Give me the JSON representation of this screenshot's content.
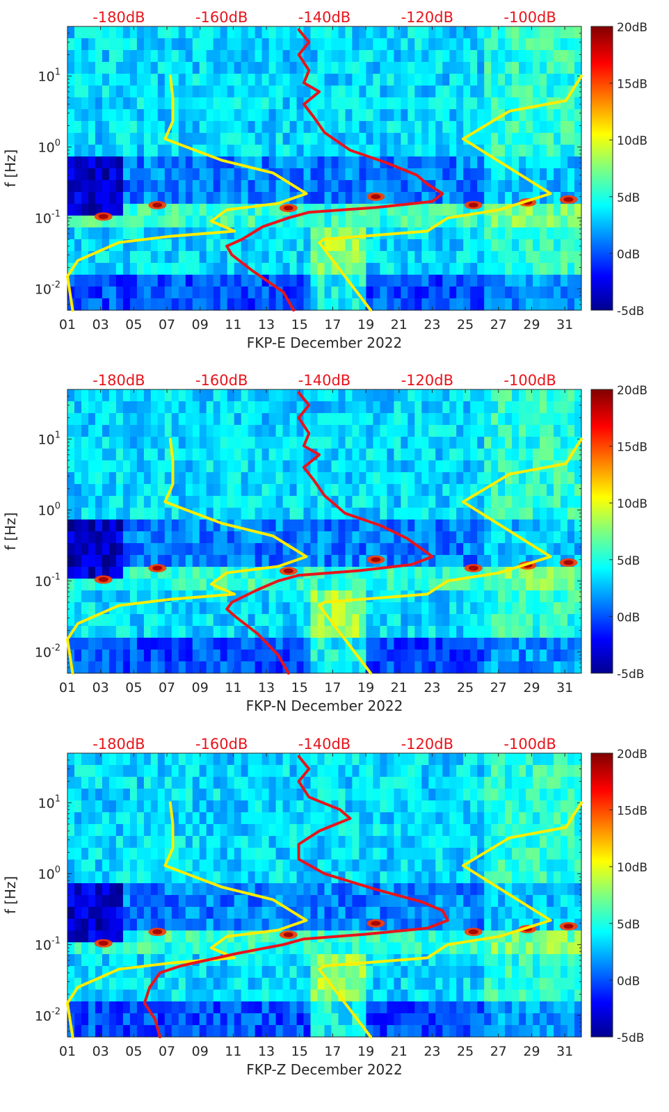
{
  "chart_data": [
    {
      "type": "heatmap",
      "title": "",
      "xlabel": "FKP-E December 2022",
      "ylabel": "f [Hz]",
      "x_ticks": [
        "01",
        "03",
        "05",
        "07",
        "09",
        "11",
        "13",
        "15",
        "17",
        "19",
        "21",
        "23",
        "25",
        "27",
        "29",
        "31"
      ],
      "x_range_days": [
        1,
        32
      ],
      "y_scale": "log",
      "y_range_hz": [
        0.005,
        50
      ],
      "y_ticks": [
        {
          "label_base": "10",
          "label_exp": "-2",
          "value": 0.01
        },
        {
          "label_base": "10",
          "label_exp": "-1",
          "value": 0.1
        },
        {
          "label_base": "10",
          "label_exp": "0",
          "value": 1
        },
        {
          "label_base": "10",
          "label_exp": "1",
          "value": 10
        }
      ],
      "top_axis_labels": [
        "-180dB",
        "-160dB",
        "-140dB",
        "-120dB",
        "-100dB"
      ],
      "top_axis_db_range": [
        -190,
        -90
      ],
      "colorbar": {
        "labels": [
          "20dB",
          "15dB",
          "10dB",
          "5dB",
          "0dB",
          "-5dB"
        ],
        "range_db": [
          -5,
          20
        ],
        "colormap": "jet"
      },
      "series": [
        {
          "color": "#ffee00",
          "points": [
            [
              -170,
              10
            ],
            [
              -169.5,
              5
            ],
            [
              -169.5,
              2.3
            ],
            [
              -171,
              1.3
            ],
            [
              -160,
              0.65
            ],
            [
              -150,
              0.43
            ],
            [
              -143.5,
              0.22
            ],
            [
              -149,
              0.16
            ],
            [
              -159,
              0.13
            ],
            [
              -162,
              0.09
            ],
            [
              -157.5,
              0.065
            ],
            [
              -170,
              0.055
            ],
            [
              -180,
              0.045
            ],
            [
              -188,
              0.025
            ],
            [
              -190,
              0.015
            ],
            [
              -189,
              0.005
            ]
          ]
        },
        {
          "color": "#ffee00",
          "points": [
            [
              -90,
              10
            ],
            [
              -93,
              4.5
            ],
            [
              -104,
              3.2
            ],
            [
              -113,
              1.3
            ],
            [
              -96,
              0.22
            ],
            [
              -106,
              0.13
            ],
            [
              -116,
              0.1
            ],
            [
              -120,
              0.065
            ],
            [
              -140,
              0.05
            ],
            [
              -141,
              0.045
            ],
            [
              -131,
              0.005
            ]
          ]
        },
        {
          "color": "#e8141b",
          "points": [
            [
              -145,
              45
            ],
            [
              -143,
              30
            ],
            [
              -145,
              20
            ],
            [
              -143,
              12
            ],
            [
              -144,
              8
            ],
            [
              -141,
              6
            ],
            [
              -144,
              4
            ],
            [
              -142,
              2.6
            ],
            [
              -140,
              1.6
            ],
            [
              -135,
              0.9
            ],
            [
              -128,
              0.6
            ],
            [
              -122,
              0.4
            ],
            [
              -120,
              0.3
            ],
            [
              -117,
              0.22
            ],
            [
              -119,
              0.17
            ],
            [
              -130,
              0.14
            ],
            [
              -143,
              0.12
            ],
            [
              -147,
              0.1
            ],
            [
              -152,
              0.075
            ],
            [
              -156,
              0.05
            ],
            [
              -159,
              0.04
            ],
            [
              -158,
              0.03
            ],
            [
              -154,
              0.018
            ],
            [
              -148,
              0.009
            ],
            [
              -146,
              0.005
            ]
          ]
        }
      ]
    },
    {
      "type": "heatmap",
      "title": "",
      "xlabel": "FKP-N December 2022",
      "ylabel": "f [Hz]",
      "x_ticks": [
        "01",
        "03",
        "05",
        "07",
        "09",
        "11",
        "13",
        "15",
        "17",
        "19",
        "21",
        "23",
        "25",
        "27",
        "29",
        "31"
      ],
      "x_range_days": [
        1,
        32
      ],
      "y_scale": "log",
      "y_range_hz": [
        0.005,
        50
      ],
      "y_ticks": [
        {
          "label_base": "10",
          "label_exp": "-2",
          "value": 0.01
        },
        {
          "label_base": "10",
          "label_exp": "-1",
          "value": 0.1
        },
        {
          "label_base": "10",
          "label_exp": "0",
          "value": 1
        },
        {
          "label_base": "10",
          "label_exp": "1",
          "value": 10
        }
      ],
      "top_axis_labels": [
        "-180dB",
        "-160dB",
        "-140dB",
        "-120dB",
        "-100dB"
      ],
      "top_axis_db_range": [
        -190,
        -90
      ],
      "colorbar": {
        "labels": [
          "20dB",
          "15dB",
          "10dB",
          "5dB",
          "0dB",
          "-5dB"
        ],
        "range_db": [
          -5,
          20
        ],
        "colormap": "jet"
      },
      "series": [
        {
          "color": "#ffee00",
          "points": [
            [
              -170,
              10
            ],
            [
              -169.5,
              5
            ],
            [
              -169.5,
              2.3
            ],
            [
              -171,
              1.3
            ],
            [
              -160,
              0.65
            ],
            [
              -150,
              0.43
            ],
            [
              -143.5,
              0.22
            ],
            [
              -149,
              0.16
            ],
            [
              -159,
              0.13
            ],
            [
              -162,
              0.09
            ],
            [
              -157.5,
              0.065
            ],
            [
              -170,
              0.055
            ],
            [
              -180,
              0.045
            ],
            [
              -188,
              0.025
            ],
            [
              -190,
              0.015
            ],
            [
              -189,
              0.005
            ]
          ]
        },
        {
          "color": "#ffee00",
          "points": [
            [
              -90,
              10
            ],
            [
              -93,
              4.5
            ],
            [
              -104,
              3.2
            ],
            [
              -113,
              1.3
            ],
            [
              -96,
              0.22
            ],
            [
              -106,
              0.13
            ],
            [
              -116,
              0.1
            ],
            [
              -120,
              0.065
            ],
            [
              -140,
              0.05
            ],
            [
              -141,
              0.045
            ],
            [
              -131,
              0.005
            ]
          ]
        },
        {
          "color": "#e8141b",
          "points": [
            [
              -145,
              45
            ],
            [
              -143,
              30
            ],
            [
              -145,
              20
            ],
            [
              -143,
              12
            ],
            [
              -144,
              8
            ],
            [
              -141,
              6
            ],
            [
              -144,
              4
            ],
            [
              -142,
              2.6
            ],
            [
              -140,
              1.6
            ],
            [
              -136,
              0.9
            ],
            [
              -129,
              0.6
            ],
            [
              -124,
              0.4
            ],
            [
              -121,
              0.28
            ],
            [
              -119,
              0.22
            ],
            [
              -123,
              0.17
            ],
            [
              -133,
              0.14
            ],
            [
              -145,
              0.12
            ],
            [
              -149,
              0.1
            ],
            [
              -153,
              0.075
            ],
            [
              -158,
              0.05
            ],
            [
              -159,
              0.04
            ],
            [
              -157,
              0.03
            ],
            [
              -153,
              0.018
            ],
            [
              -149,
              0.009
            ],
            [
              -147,
              0.005
            ]
          ]
        }
      ]
    },
    {
      "type": "heatmap",
      "title": "",
      "xlabel": "FKP-Z December 2022",
      "ylabel": "f [Hz]",
      "x_ticks": [
        "01",
        "03",
        "05",
        "07",
        "09",
        "11",
        "13",
        "15",
        "17",
        "19",
        "21",
        "23",
        "25",
        "27",
        "29",
        "31"
      ],
      "x_range_days": [
        1,
        32
      ],
      "y_scale": "log",
      "y_range_hz": [
        0.005,
        50
      ],
      "y_ticks": [
        {
          "label_base": "10",
          "label_exp": "-2",
          "value": 0.01
        },
        {
          "label_base": "10",
          "label_exp": "-1",
          "value": 0.1
        },
        {
          "label_base": "10",
          "label_exp": "0",
          "value": 1
        },
        {
          "label_base": "10",
          "label_exp": "1",
          "value": 10
        }
      ],
      "top_axis_labels": [
        "-180dB",
        "-160dB",
        "-140dB",
        "-120dB",
        "-100dB"
      ],
      "top_axis_db_range": [
        -190,
        -90
      ],
      "colorbar": {
        "labels": [
          "20dB",
          "15dB",
          "10dB",
          "5dB",
          "0dB",
          "-5dB"
        ],
        "range_db": [
          -5,
          20
        ],
        "colormap": "jet"
      },
      "series": [
        {
          "color": "#ffee00",
          "points": [
            [
              -170,
              10
            ],
            [
              -169.5,
              5
            ],
            [
              -169.5,
              2.3
            ],
            [
              -171,
              1.3
            ],
            [
              -160,
              0.65
            ],
            [
              -150,
              0.43
            ],
            [
              -143.5,
              0.22
            ],
            [
              -149,
              0.16
            ],
            [
              -159,
              0.13
            ],
            [
              -162,
              0.09
            ],
            [
              -157.5,
              0.065
            ],
            [
              -170,
              0.055
            ],
            [
              -180,
              0.045
            ],
            [
              -188,
              0.025
            ],
            [
              -190,
              0.015
            ],
            [
              -189,
              0.005
            ]
          ]
        },
        {
          "color": "#ffee00",
          "points": [
            [
              -90,
              10
            ],
            [
              -93,
              4.5
            ],
            [
              -104,
              3.2
            ],
            [
              -113,
              1.3
            ],
            [
              -96,
              0.22
            ],
            [
              -106,
              0.13
            ],
            [
              -116,
              0.1
            ],
            [
              -120,
              0.065
            ],
            [
              -140,
              0.05
            ],
            [
              -141,
              0.045
            ],
            [
              -131,
              0.005
            ]
          ]
        },
        {
          "color": "#e8141b",
          "points": [
            [
              -145,
              45
            ],
            [
              -143,
              30
            ],
            [
              -145,
              20
            ],
            [
              -143,
              12
            ],
            [
              -137,
              8
            ],
            [
              -135,
              6
            ],
            [
              -141,
              4
            ],
            [
              -145,
              2.6
            ],
            [
              -145,
              1.6
            ],
            [
              -140,
              1.0
            ],
            [
              -130,
              0.6
            ],
            [
              -121,
              0.4
            ],
            [
              -117,
              0.3
            ],
            [
              -116,
              0.22
            ],
            [
              -120,
              0.17
            ],
            [
              -132,
              0.14
            ],
            [
              -144,
              0.12
            ],
            [
              -148,
              0.1
            ],
            [
              -157,
              0.075
            ],
            [
              -168,
              0.05
            ],
            [
              -172,
              0.04
            ],
            [
              -174,
              0.025
            ],
            [
              -175,
              0.015
            ],
            [
              -173,
              0.009
            ],
            [
              -172,
              0.005
            ]
          ]
        }
      ]
    }
  ]
}
